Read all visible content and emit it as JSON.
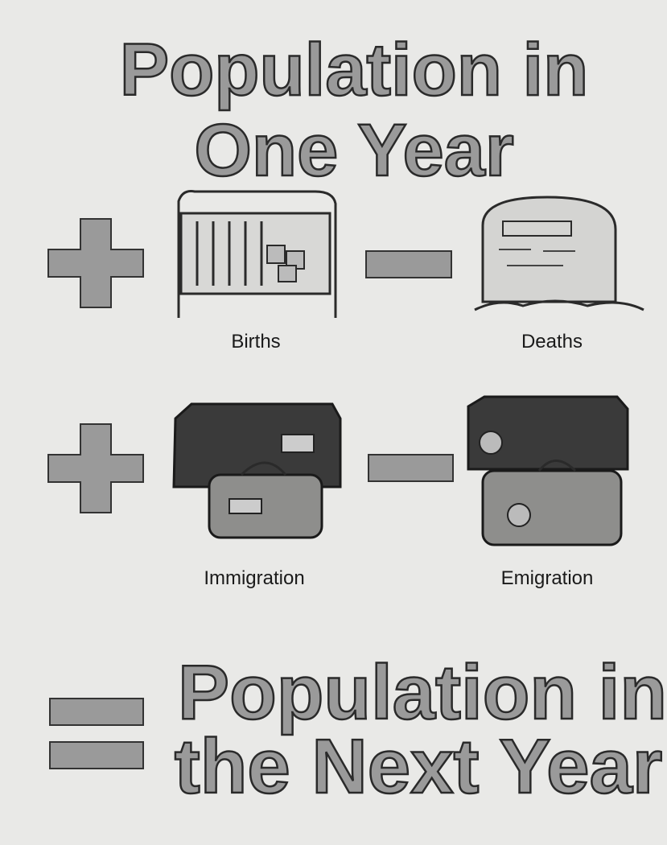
{
  "title": {
    "lines": [
      "Population in",
      "One Year"
    ]
  },
  "items": [
    {
      "label": "Births"
    },
    {
      "label": "Deaths"
    },
    {
      "label": "Immigration"
    },
    {
      "label": "Emigration"
    }
  ],
  "result": {
    "lines": [
      "Population in",
      "the Next Year"
    ]
  }
}
